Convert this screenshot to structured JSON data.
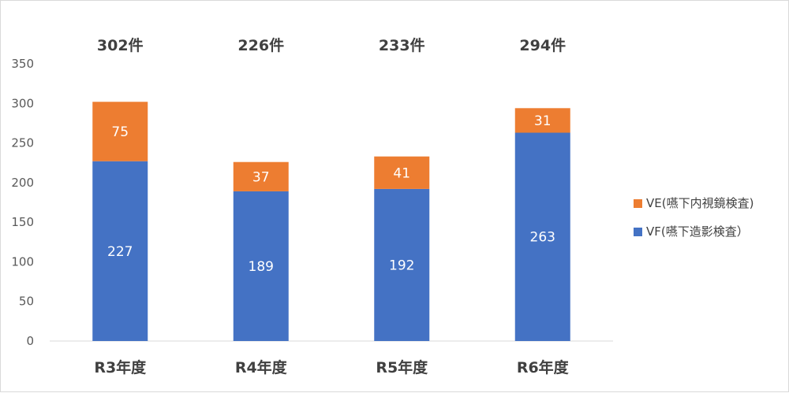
{
  "chart_data": {
    "type": "bar",
    "stacked": true,
    "categories": [
      "R3年度",
      "R4年度",
      "R5年度",
      "R6年度"
    ],
    "series": [
      {
        "name": "VF(嚥下造影検査）",
        "values": [
          227,
          189,
          192,
          263
        ],
        "color": "#4472c4"
      },
      {
        "name": "VE(嚥下内視鏡検査)",
        "values": [
          75,
          37,
          41,
          31
        ],
        "color": "#ed7d31"
      }
    ],
    "totals": [
      "302件",
      "226件",
      "233件",
      "294件"
    ],
    "ylim": [
      0,
      350
    ],
    "yticks": [
      0,
      50,
      100,
      150,
      200,
      250,
      300,
      350
    ],
    "grid": false,
    "legend_position": "right",
    "title": "",
    "xlabel": "",
    "ylabel": ""
  }
}
